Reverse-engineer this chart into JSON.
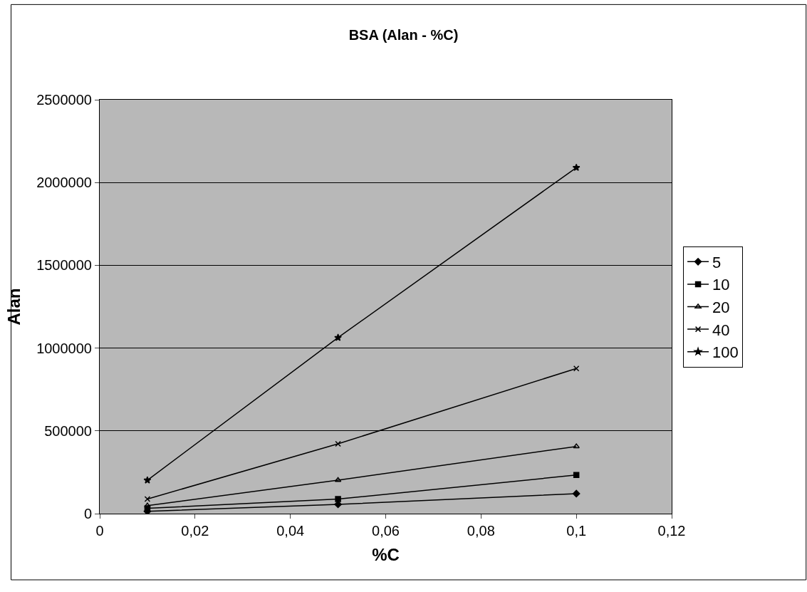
{
  "chart_data": {
    "type": "line",
    "title": "BSA (Alan - %C)",
    "xlabel": "%C",
    "ylabel": "Alan",
    "x": [
      0.01,
      0.05,
      0.1
    ],
    "series": [
      {
        "name": "5",
        "color": "#000000",
        "marker": "diamond",
        "values": [
          14000,
          56000,
          121000
        ]
      },
      {
        "name": "10",
        "color": "#000000",
        "marker": "square",
        "values": [
          32000,
          88000,
          233000
        ]
      },
      {
        "name": "20",
        "color": "#000000",
        "marker": "triangle",
        "values": [
          48000,
          202000,
          406000
        ]
      },
      {
        "name": "40",
        "color": "#000000",
        "marker": "cross",
        "values": [
          88000,
          422000,
          877000
        ]
      },
      {
        "name": "100",
        "color": "#000000",
        "marker": "star",
        "values": [
          202000,
          1063000,
          2090000
        ]
      }
    ],
    "xlim": [
      0,
      0.12
    ],
    "xticks": [
      0,
      {
        "value": 0.02,
        "label": "0,02"
      },
      {
        "value": 0.04,
        "label": "0,04"
      },
      {
        "value": 0.06,
        "label": "0,06"
      },
      {
        "value": 0.08,
        "label": "0,08"
      },
      {
        "value": 0.1,
        "label": "0,1"
      },
      {
        "value": 0.12,
        "label": "0,12"
      }
    ],
    "ylim": [
      0,
      2500000
    ],
    "yticks": [
      0,
      500000,
      1000000,
      1500000,
      2000000,
      2500000
    ],
    "grid": "y",
    "legend": "right",
    "line_style": "solid"
  }
}
